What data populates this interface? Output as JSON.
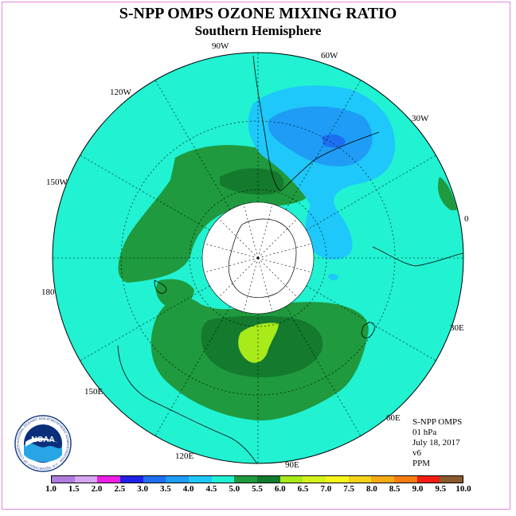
{
  "title": "S-NPP OMPS OZONE MIXING RATIO",
  "subtitle": "Southern Hemisphere",
  "longitude_labels": [
    "90W",
    "60W",
    "30W",
    "0",
    "30E",
    "60E",
    "90E",
    "120E",
    "150E",
    "180",
    "150W",
    "120W"
  ],
  "info": {
    "instrument": "S-NPP OMPS",
    "level": "01 hPa",
    "date": "July 18, 2017",
    "version": "v6",
    "units": "PPM"
  },
  "logo": {
    "text": "NOAA",
    "ring_text": "NATIONAL OCEANIC AND ATMOSPHERIC ADMINISTRATION · U.S. DEPARTMENT OF COMMERCE"
  },
  "colorbar": {
    "labels": [
      "1.0",
      "1.5",
      "2.0",
      "2.5",
      "3.0",
      "3.5",
      "4.0",
      "4.5",
      "5.0",
      "5.5",
      "6.0",
      "6.5",
      "7.0",
      "7.5",
      "8.0",
      "8.5",
      "9.0",
      "9.5",
      "10.0"
    ],
    "colors": [
      "#b07ce0",
      "#d7a6f0",
      "#ee1ee6",
      "#2020e8",
      "#1d6ff2",
      "#1e9cf6",
      "#1ec8fa",
      "#20f2d2",
      "#1f9a3e",
      "#137a2e",
      "#a8ea1a",
      "#d4f21c",
      "#f6f61c",
      "#f6d21a",
      "#f6aa14",
      "#f67c10",
      "#f21c10",
      "#8a5a2e"
    ]
  },
  "map_colors": {
    "background_level": "#20f2d2",
    "green_level": "#1f9a3e",
    "dark_green_level": "#137a2e",
    "lime_level": "#a8ea1a",
    "light_blue_level": "#1ec8fa",
    "blue_level": "#1e9cf6",
    "deep_blue_level": "#1d6ff2"
  }
}
